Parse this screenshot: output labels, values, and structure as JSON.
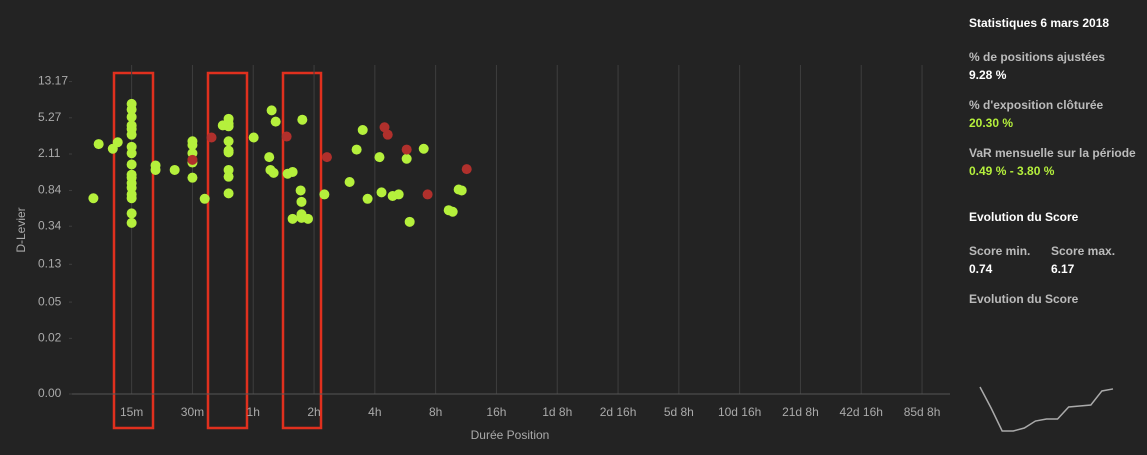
{
  "chart_data": [
    {
      "type": "scatter",
      "x_label": "Durée Position",
      "y_label": "D-Levier",
      "x_scale": "log",
      "y_scale": "log",
      "grid": "x",
      "xlim": [
        7.6,
        169000
      ],
      "ylim": [
        0.0049,
        20
      ],
      "xticks": [
        {
          "value": 15,
          "label": "15m"
        },
        {
          "value": 30,
          "label": "30m"
        },
        {
          "value": 60,
          "label": "1h"
        },
        {
          "value": 120,
          "label": "2h"
        },
        {
          "value": 240,
          "label": "4h"
        },
        {
          "value": 480,
          "label": "8h"
        },
        {
          "value": 960,
          "label": "16h"
        },
        {
          "value": 1920,
          "label": "1d 8h"
        },
        {
          "value": 3840,
          "label": "2d 16h"
        },
        {
          "value": 7680,
          "label": "5d 8h"
        },
        {
          "value": 15360,
          "label": "10d 16h"
        },
        {
          "value": 30720,
          "label": "21d 8h"
        },
        {
          "value": 61440,
          "label": "42d 16h"
        },
        {
          "value": 122880,
          "label": "85d 8h"
        }
      ],
      "yticks": [
        {
          "value": 0.0049,
          "label": "0.00"
        },
        0.02,
        0.05,
        0.13,
        0.34,
        0.84,
        2.11,
        5.27,
        13.17
      ],
      "series": [
        {
          "color": "#b5f03c",
          "x": [
            9.7,
            10.3,
            12.1,
            12.8,
            15,
            15,
            15,
            15,
            15,
            15,
            15,
            15,
            15,
            15,
            15,
            15,
            15,
            15,
            15,
            15,
            15,
            19.7,
            19.7,
            24.5,
            30,
            30,
            30,
            30,
            30,
            34.5,
            45.3,
            45.3,
            45.3,
            45.3,
            45.3,
            45.3,
            45.3,
            45.3,
            45.3,
            42.4,
            60.3,
            74,
            77.5,
            72,
            73,
            75.7,
            88.8,
            94,
            103,
            104,
            105,
            104,
            104,
            112,
            94,
            135,
            180,
            195,
            209,
            221,
            253,
            259,
            294,
            315,
            345,
            357,
            419,
            557,
            583,
            624,
            646
          ],
          "values": [
            0.69,
            2.71,
            2.41,
            2.84,
            7.48,
            6.5,
            5.38,
            4.35,
            3.96,
            3.44,
            2.53,
            2.15,
            1.62,
            1.25,
            1.16,
            1.01,
            0.9,
            0.76,
            0.69,
            0.47,
            0.37,
            1.58,
            1.41,
            1.41,
            2.91,
            2.65,
            2.15,
            1.7,
            1.16,
            0.68,
            5.13,
            4.56,
            4.25,
            2.91,
            2.3,
            2.2,
            1.41,
            1.19,
            0.78,
            4.35,
            3.2,
            6.35,
            4.78,
            1.95,
            1.41,
            1.31,
            1.28,
            1.34,
            0.84,
            0.63,
            5.02,
            0.46,
            0.42,
            0.41,
            0.41,
            0.76,
            1.04,
            2.36,
            3.87,
            0.68,
            1.95,
            0.8,
            0.73,
            0.76,
            1.87,
            0.38,
            2.41,
            0.51,
            0.49,
            0.86,
            0.84
          ]
        },
        {
          "color": "#b0302c",
          "x": [
            30,
            37.3,
            87.8,
            139,
            268,
            278,
            345,
            438,
            684
          ],
          "values": [
            1.82,
            3.2,
            3.28,
            1.95,
            4.15,
            3.44,
            2.36,
            0.76,
            1.44
          ]
        }
      ]
    },
    {
      "type": "line",
      "title": "Evolution du Score",
      "color": "#aaaaaa",
      "ylim": [
        0.74,
        6.17
      ],
      "values": [
        6.17,
        3.58,
        0.74,
        0.74,
        1.11,
        1.97,
        2.22,
        2.22,
        3.7,
        3.83,
        3.95,
        5.68,
        5.93
      ]
    }
  ],
  "sidebar": {
    "title": "Statistiques 6 mars 2018",
    "stats": [
      {
        "label": "% de positions ajustées",
        "value": "9.28 %"
      },
      {
        "label": "% d'exposition clôturée",
        "value": "20.30 %"
      },
      {
        "label": "VaR mensuelle sur la période",
        "value": "0.49 % - 3.80 %"
      }
    ],
    "score_title": "Evolution du Score",
    "score_min_label": "Score min.",
    "score_min": "0.74",
    "score_max_label": "Score max.",
    "score_max": "6.17"
  }
}
